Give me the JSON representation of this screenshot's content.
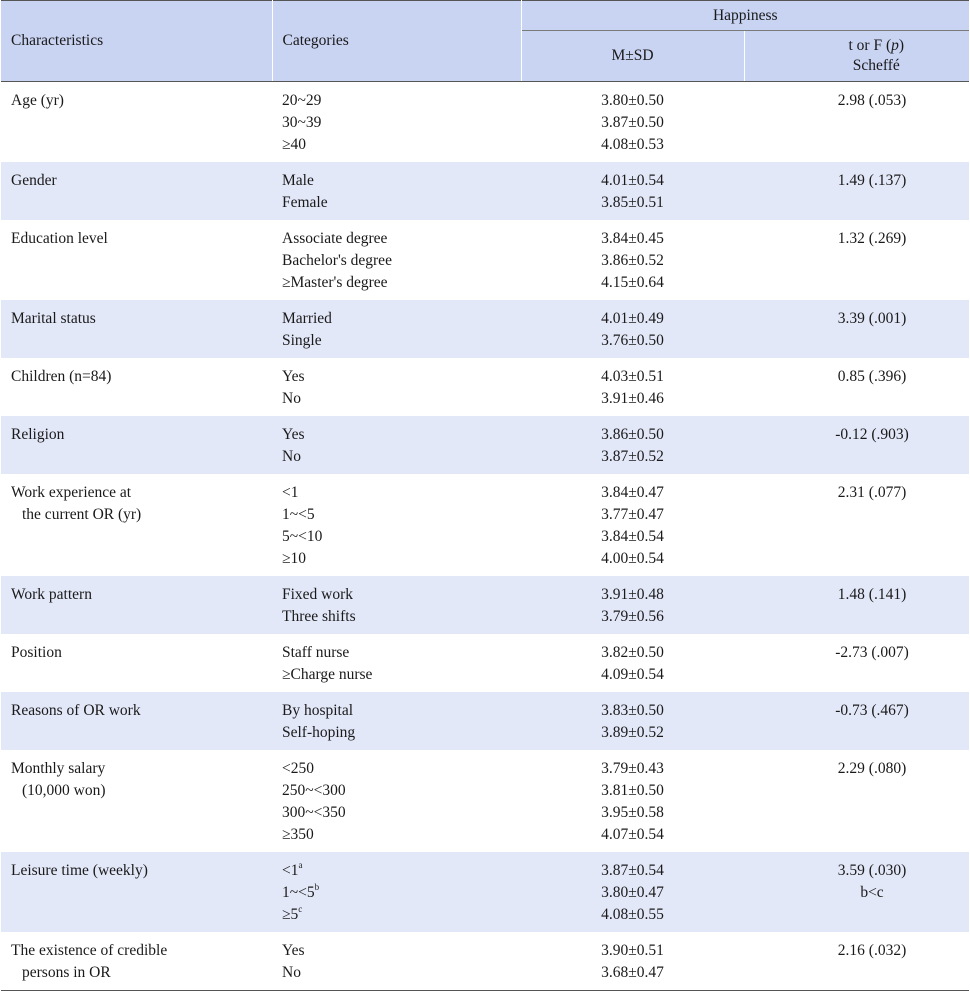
{
  "header": {
    "characteristics": "Characteristics",
    "categories": "Categories",
    "happiness": "Happiness",
    "msd": "M±SD",
    "tf_prefix": "t or F (",
    "tf_p": "p",
    "tf_suffix": ")",
    "scheffe": "Scheffé"
  },
  "rows": [
    {
      "char": [
        "Age (yr)"
      ],
      "cats": [
        "20~29",
        "30~39",
        "≥40"
      ],
      "msd": [
        "3.80±0.50",
        "3.87±0.50",
        "4.08±0.53"
      ],
      "tf": [
        "2.98 (.053)"
      ]
    },
    {
      "char": [
        "Gender"
      ],
      "cats": [
        "Male",
        "Female"
      ],
      "msd": [
        "4.01±0.54",
        "3.85±0.51"
      ],
      "tf": [
        "1.49 (.137)"
      ]
    },
    {
      "char": [
        "Education level"
      ],
      "cats": [
        "Associate degree",
        "Bachelor's degree",
        "≥Master's degree"
      ],
      "msd": [
        "3.84±0.45",
        "3.86±0.52",
        "4.15±0.64"
      ],
      "tf": [
        "1.32 (.269)"
      ]
    },
    {
      "char": [
        "Marital status"
      ],
      "cats": [
        "Married",
        "Single"
      ],
      "msd": [
        "4.01±0.49",
        "3.76±0.50"
      ],
      "tf": [
        "3.39 (.001)"
      ]
    },
    {
      "char": [
        "Children (n=84)"
      ],
      "cats": [
        "Yes",
        "No"
      ],
      "msd": [
        "4.03±0.51",
        "3.91±0.46"
      ],
      "tf": [
        "0.85 (.396)"
      ]
    },
    {
      "char": [
        "Religion"
      ],
      "cats": [
        "Yes",
        "No"
      ],
      "msd": [
        "3.86±0.50",
        "3.87±0.52"
      ],
      "tf": [
        "-0.12 (.903)"
      ]
    },
    {
      "char": [
        "Work experience at",
        "the current OR (yr)"
      ],
      "cats": [
        "<1",
        "1~<5",
        "5~<10",
        "≥10"
      ],
      "msd": [
        "3.84±0.47",
        "3.77±0.47",
        "3.84±0.54",
        "4.00±0.54"
      ],
      "tf": [
        "2.31 (.077)"
      ]
    },
    {
      "char": [
        "Work pattern"
      ],
      "cats": [
        "Fixed work",
        "Three shifts"
      ],
      "msd": [
        "3.91±0.48",
        "3.79±0.56"
      ],
      "tf": [
        "1.48 (.141)"
      ]
    },
    {
      "char": [
        "Position"
      ],
      "cats": [
        "Staff nurse",
        "≥Charge nurse"
      ],
      "msd": [
        "3.82±0.50",
        "4.09±0.54"
      ],
      "tf": [
        "-2.73 (.007)"
      ]
    },
    {
      "char": [
        "Reasons of OR work"
      ],
      "cats": [
        "By hospital",
        "Self-hoping"
      ],
      "msd": [
        "3.83±0.50",
        "3.89±0.52"
      ],
      "tf": [
        "-0.73 (.467)"
      ]
    },
    {
      "char": [
        "Monthly salary",
        "(10,000 won)"
      ],
      "cats": [
        "<250",
        "250~<300",
        "300~<350",
        "≥350"
      ],
      "msd": [
        "3.79±0.43",
        "3.81±0.50",
        "3.95±0.58",
        "4.07±0.54"
      ],
      "tf": [
        "2.29 (.080)"
      ]
    },
    {
      "char": [
        "Leisure time (weekly)"
      ],
      "cats": [
        "<1",
        "1~<5",
        "≥5"
      ],
      "sups": [
        "a",
        "b",
        "c"
      ],
      "msd": [
        "3.87±0.54",
        "3.80±0.47",
        "4.08±0.55"
      ],
      "tf": [
        "3.59 (.030)",
        "b<c"
      ]
    },
    {
      "char": [
        "The existence of credible",
        "persons in OR"
      ],
      "cats": [
        "Yes",
        "No"
      ],
      "msd": [
        "3.90±0.51",
        "3.68±0.47"
      ],
      "tf": [
        "2.16 (.032)"
      ]
    }
  ]
}
